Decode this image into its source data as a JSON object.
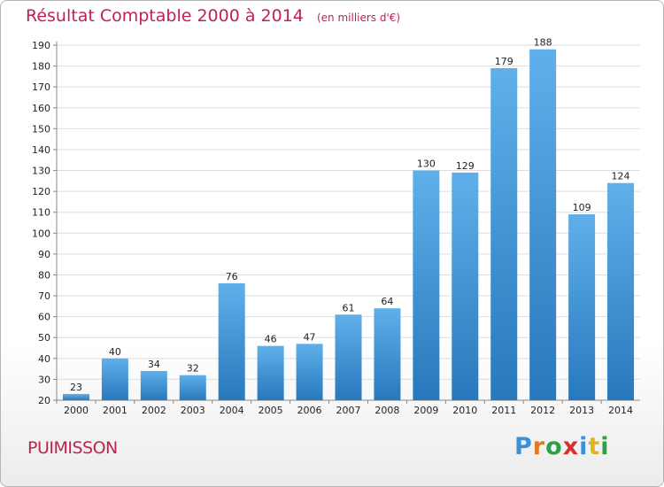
{
  "title": "Résultat Comptable 2000 à 2014",
  "unit_label": "(en milliers d'€)",
  "commune": "PUIMISSON",
  "logo_text": "Proxiti",
  "colors": {
    "title": "#c0224f",
    "bar_light": "#5fb0ea",
    "bar_dark": "#2878bd",
    "grid": "#dddddd",
    "axis_text": "#222222"
  },
  "chart_data": {
    "type": "bar",
    "categories": [
      "2000",
      "2001",
      "2002",
      "2003",
      "2004",
      "2005",
      "2006",
      "2007",
      "2008",
      "2009",
      "2010",
      "2011",
      "2012",
      "2013",
      "2014"
    ],
    "values": [
      23,
      40,
      34,
      32,
      76,
      46,
      47,
      61,
      64,
      130,
      129,
      179,
      188,
      109,
      124
    ],
    "title": "Résultat Comptable 2000 à 2014",
    "subtitle": "(en milliers d'€)",
    "xlabel": "",
    "ylabel": "",
    "ylim": [
      20,
      190
    ],
    "yticks": [
      20,
      30,
      40,
      50,
      60,
      70,
      80,
      90,
      100,
      110,
      120,
      130,
      140,
      150,
      160,
      170,
      180,
      190
    ],
    "grid": true,
    "data_labels": true
  }
}
